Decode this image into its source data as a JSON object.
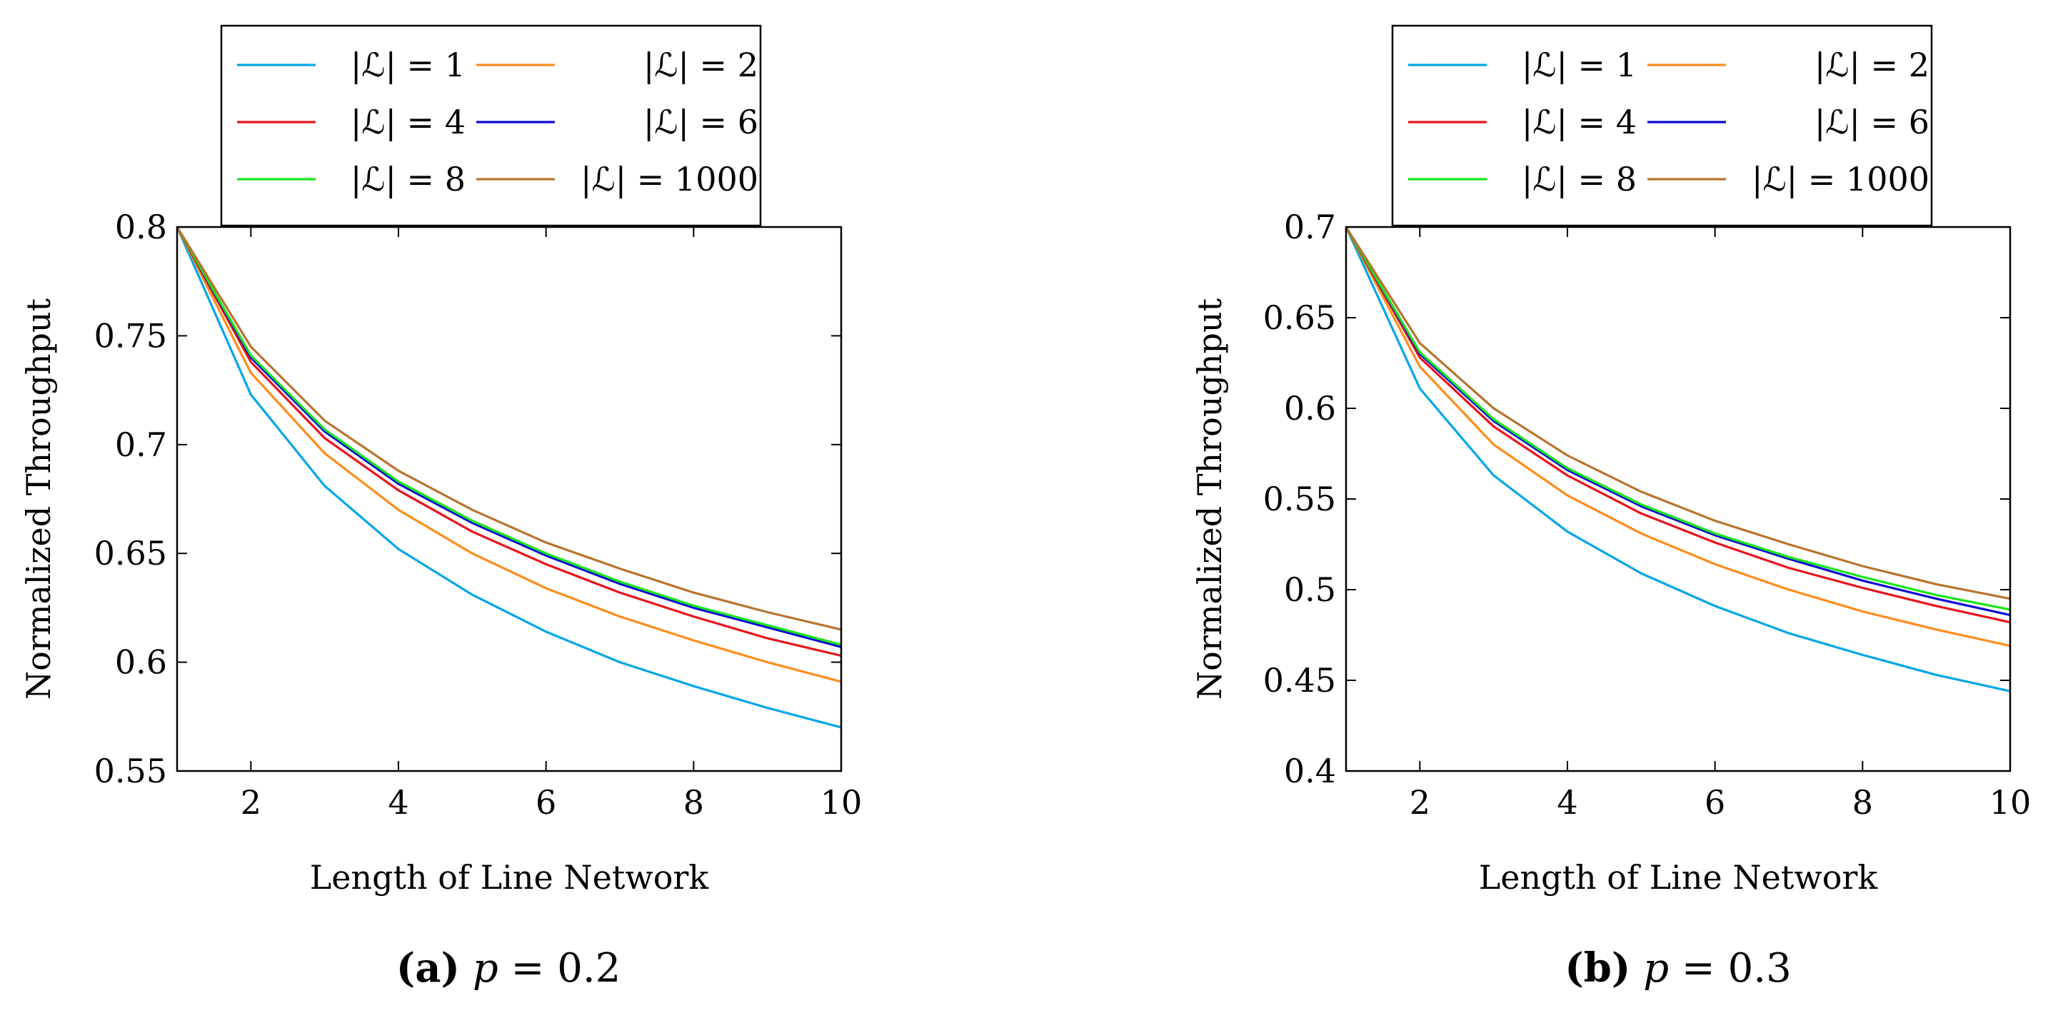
{
  "chart_data": [
    {
      "type": "line",
      "xlabel": "Length of Line Network",
      "ylabel": "Normalized Throughput",
      "xlim": [
        1,
        10
      ],
      "ylim": [
        0.55,
        0.8
      ],
      "xticks": [
        "2",
        "4",
        "6",
        "8",
        "10"
      ],
      "yticks": [
        "0.55",
        "0.6",
        "0.65",
        "0.7",
        "0.75",
        "0.8"
      ],
      "legend_position": "top (above plot)",
      "caption": {
        "letter": "(a)",
        "variable": "p",
        "equals": "= 0.2"
      },
      "x": [
        1,
        2,
        3,
        4,
        5,
        6,
        7,
        8,
        9,
        10
      ],
      "series": [
        {
          "name": "|ℒ| = 1",
          "color": "#00a6e6",
          "values": [
            0.8,
            0.723,
            0.681,
            0.652,
            0.631,
            0.614,
            0.6,
            0.589,
            0.579,
            0.57
          ]
        },
        {
          "name": "|ℒ| = 2",
          "color": "#ff8c1a",
          "values": [
            0.8,
            0.733,
            0.696,
            0.67,
            0.65,
            0.634,
            0.621,
            0.61,
            0.6,
            0.591
          ]
        },
        {
          "name": "|ℒ| = 4",
          "color": "#e8141c",
          "values": [
            0.8,
            0.738,
            0.703,
            0.679,
            0.66,
            0.645,
            0.632,
            0.621,
            0.611,
            0.603
          ]
        },
        {
          "name": "|ℒ| = 6",
          "color": "#0b0bd4",
          "values": [
            0.8,
            0.74,
            0.706,
            0.682,
            0.664,
            0.649,
            0.636,
            0.625,
            0.616,
            0.607
          ]
        },
        {
          "name": "|ℒ| = 8",
          "color": "#19e619",
          "values": [
            0.8,
            0.741,
            0.707,
            0.683,
            0.665,
            0.65,
            0.637,
            0.626,
            0.617,
            0.608
          ]
        },
        {
          "name": "|ℒ| = 1000",
          "color": "#b8732e",
          "values": [
            0.8,
            0.745,
            0.711,
            0.688,
            0.67,
            0.655,
            0.643,
            0.632,
            0.623,
            0.615
          ]
        }
      ]
    },
    {
      "type": "line",
      "xlabel": "Length of Line Network",
      "ylabel": "Normalized Throughput",
      "xlim": [
        1,
        10
      ],
      "ylim": [
        0.4,
        0.7
      ],
      "xticks": [
        "2",
        "4",
        "6",
        "8",
        "10"
      ],
      "yticks": [
        "0.4",
        "0.45",
        "0.5",
        "0.55",
        "0.6",
        "0.65",
        "0.7"
      ],
      "legend_position": "top (above plot)",
      "caption": {
        "letter": "(b)",
        "variable": "p",
        "equals": "= 0.3"
      },
      "x": [
        1,
        2,
        3,
        4,
        5,
        6,
        7,
        8,
        9,
        10
      ],
      "series": [
        {
          "name": "|ℒ| = 1",
          "color": "#00a6e6",
          "values": [
            0.7,
            0.611,
            0.563,
            0.532,
            0.509,
            0.491,
            0.476,
            0.464,
            0.453,
            0.444
          ]
        },
        {
          "name": "|ℒ| = 2",
          "color": "#ff8c1a",
          "values": [
            0.7,
            0.623,
            0.58,
            0.552,
            0.531,
            0.514,
            0.5,
            0.488,
            0.478,
            0.469
          ]
        },
        {
          "name": "|ℒ| = 4",
          "color": "#e8141c",
          "values": [
            0.7,
            0.628,
            0.59,
            0.563,
            0.542,
            0.526,
            0.512,
            0.501,
            0.491,
            0.482
          ]
        },
        {
          "name": "|ℒ| = 6",
          "color": "#0b0bd4",
          "values": [
            0.7,
            0.63,
            0.593,
            0.566,
            0.546,
            0.53,
            0.517,
            0.505,
            0.495,
            0.486
          ]
        },
        {
          "name": "|ℒ| = 8",
          "color": "#19e619",
          "values": [
            0.7,
            0.631,
            0.594,
            0.567,
            0.547,
            0.531,
            0.518,
            0.507,
            0.497,
            0.489
          ]
        },
        {
          "name": "|ℒ| = 1000",
          "color": "#b8732e",
          "values": [
            0.7,
            0.636,
            0.6,
            0.574,
            0.554,
            0.538,
            0.525,
            0.513,
            0.503,
            0.495
          ]
        }
      ]
    }
  ]
}
